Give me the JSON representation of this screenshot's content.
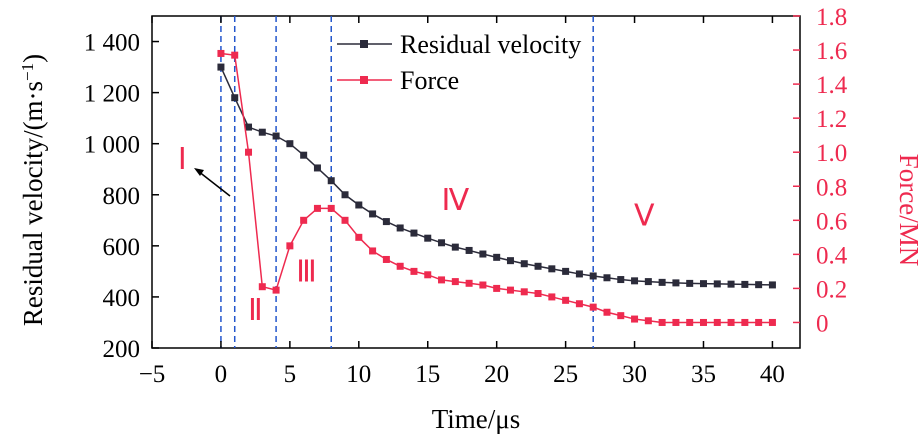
{
  "chart_data": {
    "type": "line",
    "xlabel": "Time/μs",
    "ylabel_left": "Residual velocity/(m·s",
    "ylabel_left_exp": "−1",
    "ylabel_left_close": ")",
    "ylabel_right": "Force/MN",
    "xlim": [
      -5,
      42
    ],
    "ylim_left": [
      200,
      1500
    ],
    "ylim_right": [
      -0.15,
      1.8
    ],
    "x_ticks": [
      -5,
      0,
      5,
      10,
      15,
      20,
      25,
      30,
      35,
      40
    ],
    "x_tick_labels": [
      "−5",
      "0",
      "5",
      "10",
      "15",
      "20",
      "25",
      "30",
      "35",
      "40"
    ],
    "y_left_ticks": [
      200,
      400,
      600,
      800,
      1000,
      1200,
      1400
    ],
    "y_left_tick_labels": [
      "200",
      "400",
      "600",
      "800",
      "1 000",
      "1 200",
      "1 400"
    ],
    "y_right_ticks": [
      0,
      0.2,
      0.4,
      0.6,
      0.8,
      1.0,
      1.2,
      1.4,
      1.6,
      1.8
    ],
    "y_right_tick_labels": [
      "0",
      "0.2",
      "0.4",
      "0.6",
      "0.8",
      "1.0",
      "1.2",
      "1.4",
      "1.6",
      "1.8"
    ],
    "series": [
      {
        "name": "Residual velocity",
        "axis": "left",
        "color": "#2b2b3a",
        "x": [
          0,
          1,
          2,
          3,
          4,
          5,
          6,
          7,
          8,
          9,
          10,
          11,
          12,
          13,
          14,
          15,
          16,
          17,
          18,
          19,
          20,
          21,
          22,
          23,
          24,
          25,
          26,
          27,
          28,
          29,
          30,
          31,
          32,
          33,
          34,
          35,
          36,
          37,
          38,
          39,
          40
        ],
        "values": [
          1300,
          1180,
          1065,
          1045,
          1030,
          1000,
          955,
          905,
          855,
          800,
          760,
          725,
          695,
          670,
          650,
          630,
          612,
          595,
          582,
          568,
          555,
          542,
          530,
          520,
          510,
          500,
          490,
          482,
          475,
          468,
          463,
          460,
          457,
          455,
          453,
          452,
          451,
          450,
          449,
          448,
          447
        ]
      },
      {
        "name": "Force",
        "axis": "right",
        "color": "#ee2a4f",
        "x": [
          0,
          1,
          2,
          3,
          4,
          5,
          6,
          7,
          8,
          9,
          10,
          11,
          12,
          13,
          14,
          15,
          16,
          17,
          18,
          19,
          20,
          21,
          22,
          23,
          24,
          25,
          26,
          27,
          28,
          29,
          30,
          31,
          32,
          33,
          34,
          35,
          36,
          37,
          38,
          39,
          40
        ],
        "values": [
          1.58,
          1.57,
          1.0,
          0.21,
          0.19,
          0.45,
          0.6,
          0.67,
          0.67,
          0.6,
          0.5,
          0.42,
          0.37,
          0.33,
          0.3,
          0.28,
          0.25,
          0.24,
          0.23,
          0.22,
          0.2,
          0.19,
          0.18,
          0.17,
          0.15,
          0.13,
          0.11,
          0.09,
          0.06,
          0.04,
          0.02,
          0.01,
          0.0,
          0.0,
          0.0,
          0.0,
          0.0,
          0.0,
          0.0,
          0.0,
          0.0
        ]
      }
    ],
    "vlines": [
      0,
      1,
      4,
      8,
      27
    ],
    "regions": [
      {
        "label": "Ⅰ",
        "x": -2.8,
        "y": 900
      },
      {
        "label": "Ⅱ",
        "x": 2.5,
        "y": 310
      },
      {
        "label": "Ⅲ",
        "x": 6.2,
        "y": 460
      },
      {
        "label": "Ⅳ",
        "x": 17,
        "y": 740
      },
      {
        "label": "Ⅴ",
        "x": 30.7,
        "y": 680
      }
    ],
    "grid": false,
    "legend_position": "top-center"
  }
}
